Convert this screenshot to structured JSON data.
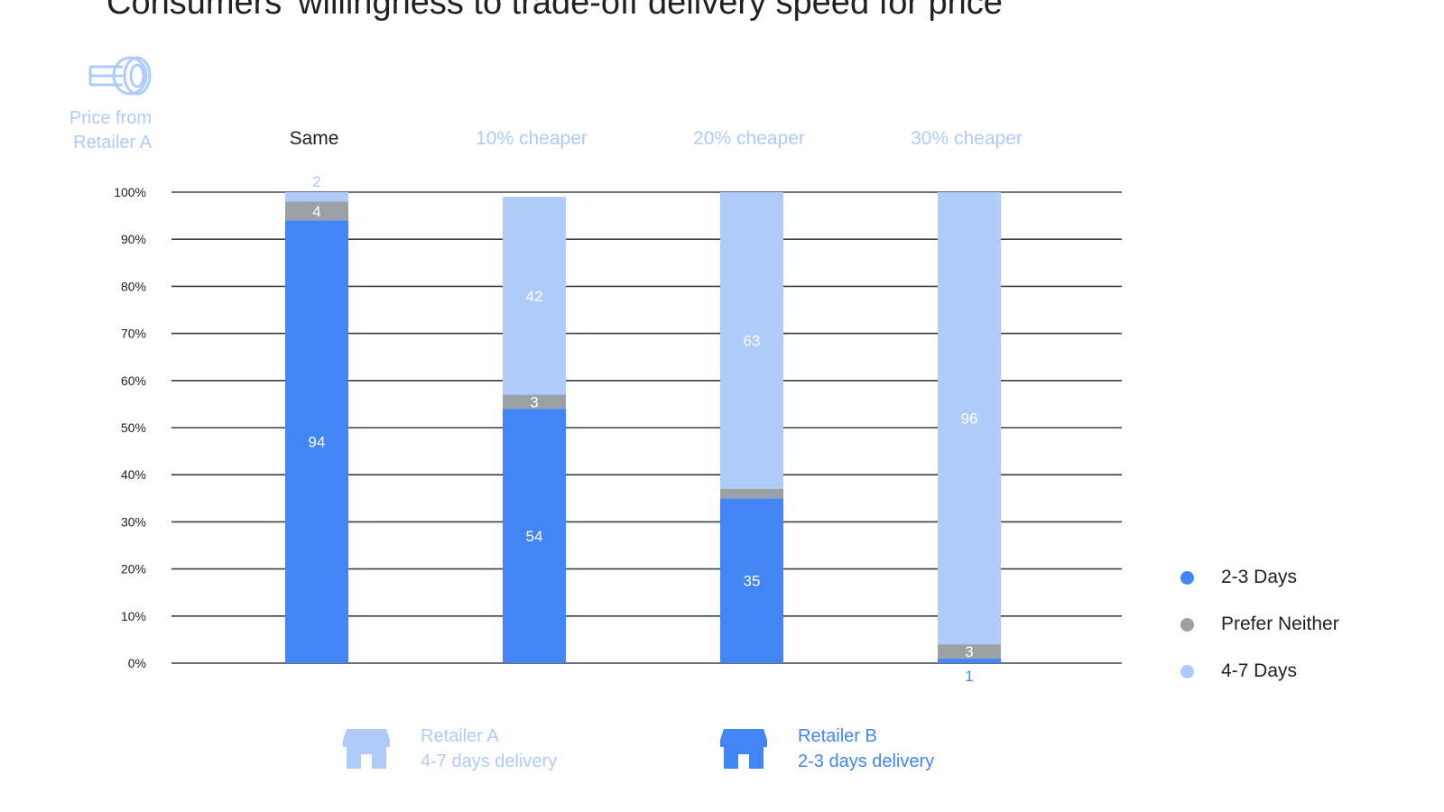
{
  "chart_data": {
    "type": "bar",
    "stacked": true,
    "title": "Consumers' willingness to trade-off delivery speed for price",
    "y_axis_header": [
      "Price from",
      "Retailer A"
    ],
    "categories": [
      "Same",
      "10% cheaper",
      "20% cheaper",
      "30% cheaper"
    ],
    "category_colors": [
      "#202124",
      "#aecbfa",
      "#aecbfa",
      "#aecbfa"
    ],
    "ylim": [
      0,
      100
    ],
    "yticks": [
      "0%",
      "10%",
      "20%",
      "30%",
      "40%",
      "50%",
      "60%",
      "70%",
      "80%",
      "90%",
      "100%"
    ],
    "grid": true,
    "series": [
      {
        "name": "2-3 Days",
        "color": "#4285f4",
        "label_color": "#ffffff",
        "values": [
          94,
          54,
          35,
          1
        ]
      },
      {
        "name": "Prefer Neither",
        "color": "#9aa0a6",
        "label_color": "#ffffff",
        "values": [
          4,
          3,
          2,
          3
        ]
      },
      {
        "name": "4-7 Days",
        "color": "#aecbfa",
        "label_color": "#ffffff",
        "values": [
          2,
          42,
          63,
          96
        ]
      }
    ],
    "legend_position": "right"
  },
  "legend": [
    {
      "label": "2-3 Days",
      "color": "#4285f4"
    },
    {
      "label": "Prefer Neither",
      "color": "#9aa0a6"
    },
    {
      "label": "4-7 Days",
      "color": "#aecbfa"
    }
  ],
  "retailers": {
    "a": {
      "name": "Retailer A",
      "delivery": "4-7 days delivery",
      "color": "#aecbfa"
    },
    "b": {
      "name": "Retailer B",
      "delivery": "2-3 days delivery",
      "color": "#4285f4"
    }
  }
}
